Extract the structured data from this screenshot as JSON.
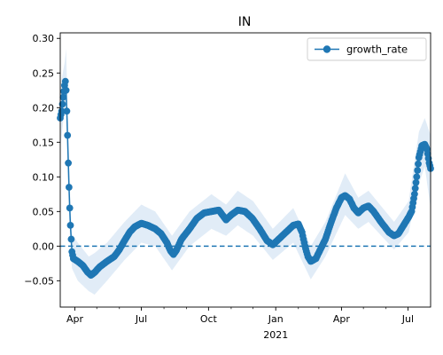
{
  "chart_data": {
    "type": "line",
    "title": "IN",
    "xlabel": "",
    "ylabel": "",
    "x_range": [
      "2020-03-12",
      "2021-08-01"
    ],
    "ylim": [
      -0.088,
      0.308
    ],
    "y_ticks": [
      -0.05,
      0.0,
      0.05,
      0.1,
      0.15,
      0.2,
      0.25,
      0.3
    ],
    "y_tick_labels": [
      "−0.05",
      "0.00",
      "0.05",
      "0.10",
      "0.15",
      "0.20",
      "0.25",
      "0.30"
    ],
    "x_ticks": [
      {
        "date": "2020-04-01",
        "label": "Apr"
      },
      {
        "date": "2020-07-01",
        "label": "Jul"
      },
      {
        "date": "2020-10-01",
        "label": "Oct"
      },
      {
        "date": "2021-01-01",
        "label": "Jan",
        "sublabel": "2021"
      },
      {
        "date": "2021-04-01",
        "label": "Apr"
      },
      {
        "date": "2021-07-01",
        "label": "Jul"
      }
    ],
    "x_minor_ticks": [
      "2020-05-01",
      "2020-06-01",
      "2020-08-01",
      "2020-09-01",
      "2020-11-01",
      "2020-12-01",
      "2021-02-01",
      "2021-03-01",
      "2021-05-01",
      "2021-06-01"
    ],
    "grid": false,
    "legend": {
      "placement": "top-right",
      "entries": [
        "growth_rate"
      ]
    },
    "reference_line": {
      "y": 0,
      "style": "dashed"
    },
    "series": [
      {
        "name": "growth_rate",
        "color": "#1f77b4",
        "band_color": "#dce9f6",
        "marker": "circle",
        "points": [
          [
            "2020-03-12",
            0.185
          ],
          [
            "2020-03-14",
            0.195
          ],
          [
            "2020-03-16",
            0.215
          ],
          [
            "2020-03-18",
            0.232
          ],
          [
            "2020-03-19",
            0.238
          ],
          [
            "2020-03-20",
            0.225
          ],
          [
            "2020-03-21",
            0.195
          ],
          [
            "2020-03-22",
            0.16
          ],
          [
            "2020-03-23",
            0.12
          ],
          [
            "2020-03-24",
            0.085
          ],
          [
            "2020-03-25",
            0.055
          ],
          [
            "2020-03-26",
            0.03
          ],
          [
            "2020-03-27",
            0.01
          ],
          [
            "2020-03-28",
            -0.008
          ],
          [
            "2020-03-30",
            -0.018
          ],
          [
            "2020-04-05",
            -0.022
          ],
          [
            "2020-04-12",
            -0.028
          ],
          [
            "2020-04-18",
            -0.037
          ],
          [
            "2020-04-23",
            -0.042
          ],
          [
            "2020-04-28",
            -0.038
          ],
          [
            "2020-05-05",
            -0.03
          ],
          [
            "2020-05-15",
            -0.022
          ],
          [
            "2020-05-25",
            -0.015
          ],
          [
            "2020-06-01",
            -0.005
          ],
          [
            "2020-06-08",
            0.008
          ],
          [
            "2020-06-15",
            0.02
          ],
          [
            "2020-06-22",
            0.028
          ],
          [
            "2020-07-01",
            0.033
          ],
          [
            "2020-07-10",
            0.03
          ],
          [
            "2020-07-20",
            0.025
          ],
          [
            "2020-07-28",
            0.018
          ],
          [
            "2020-08-05",
            0.005
          ],
          [
            "2020-08-10",
            -0.007
          ],
          [
            "2020-08-14",
            -0.012
          ],
          [
            "2020-08-18",
            -0.006
          ],
          [
            "2020-08-25",
            0.01
          ],
          [
            "2020-09-05",
            0.025
          ],
          [
            "2020-09-15",
            0.04
          ],
          [
            "2020-09-25",
            0.048
          ],
          [
            "2020-10-05",
            0.05
          ],
          [
            "2020-10-15",
            0.052
          ],
          [
            "2020-10-20",
            0.045
          ],
          [
            "2020-10-25",
            0.038
          ],
          [
            "2020-11-01",
            0.045
          ],
          [
            "2020-11-10",
            0.052
          ],
          [
            "2020-11-20",
            0.05
          ],
          [
            "2020-11-30",
            0.04
          ],
          [
            "2020-12-10",
            0.025
          ],
          [
            "2020-12-20",
            0.008
          ],
          [
            "2020-12-28",
            0.002
          ],
          [
            "2021-01-05",
            0.01
          ],
          [
            "2021-01-15",
            0.02
          ],
          [
            "2021-01-25",
            0.03
          ],
          [
            "2021-02-01",
            0.032
          ],
          [
            "2021-02-06",
            0.02
          ],
          [
            "2021-02-10",
            0.0
          ],
          [
            "2021-02-14",
            -0.015
          ],
          [
            "2021-02-18",
            -0.022
          ],
          [
            "2021-02-25",
            -0.018
          ],
          [
            "2021-03-03",
            -0.005
          ],
          [
            "2021-03-10",
            0.01
          ],
          [
            "2021-03-18",
            0.035
          ],
          [
            "2021-03-25",
            0.055
          ],
          [
            "2021-04-01",
            0.07
          ],
          [
            "2021-04-06",
            0.073
          ],
          [
            "2021-04-12",
            0.068
          ],
          [
            "2021-04-18",
            0.055
          ],
          [
            "2021-04-24",
            0.048
          ],
          [
            "2021-05-01",
            0.055
          ],
          [
            "2021-05-08",
            0.058
          ],
          [
            "2021-05-15",
            0.05
          ],
          [
            "2021-05-25",
            0.035
          ],
          [
            "2021-06-05",
            0.02
          ],
          [
            "2021-06-12",
            0.015
          ],
          [
            "2021-06-18",
            0.018
          ],
          [
            "2021-06-25",
            0.03
          ],
          [
            "2021-07-02",
            0.042
          ],
          [
            "2021-07-06",
            0.05
          ],
          [
            "2021-07-10",
            0.075
          ],
          [
            "2021-07-13",
            0.1
          ],
          [
            "2021-07-16",
            0.128
          ],
          [
            "2021-07-20",
            0.145
          ],
          [
            "2021-07-24",
            0.147
          ],
          [
            "2021-07-27",
            0.14
          ],
          [
            "2021-07-30",
            0.12
          ],
          [
            "2021-08-01",
            0.112
          ]
        ],
        "band": [
          [
            "2020-03-12",
            0.14,
            0.23
          ],
          [
            "2020-03-18",
            0.2,
            0.265
          ],
          [
            "2020-03-20",
            0.205,
            0.285
          ],
          [
            "2020-03-22",
            0.12,
            0.205
          ],
          [
            "2020-03-24",
            0.045,
            0.125
          ],
          [
            "2020-03-26",
            0.0,
            0.06
          ],
          [
            "2020-03-28",
            -0.032,
            0.018
          ],
          [
            "2020-04-05",
            -0.05,
            0.005
          ],
          [
            "2020-04-20",
            -0.065,
            -0.015
          ],
          [
            "2020-04-28",
            -0.07,
            -0.01
          ],
          [
            "2020-05-15",
            -0.05,
            0.005
          ],
          [
            "2020-06-08",
            -0.02,
            0.035
          ],
          [
            "2020-07-01",
            0.005,
            0.06
          ],
          [
            "2020-07-20",
            0.0,
            0.05
          ],
          [
            "2020-08-12",
            -0.035,
            0.015
          ],
          [
            "2020-09-05",
            0.0,
            0.05
          ],
          [
            "2020-10-05",
            0.025,
            0.075
          ],
          [
            "2020-10-25",
            0.015,
            0.06
          ],
          [
            "2020-11-10",
            0.03,
            0.08
          ],
          [
            "2020-12-01",
            0.015,
            0.065
          ],
          [
            "2020-12-28",
            -0.02,
            0.025
          ],
          [
            "2021-01-25",
            0.005,
            0.055
          ],
          [
            "2021-02-18",
            -0.048,
            0.0
          ],
          [
            "2021-03-10",
            -0.015,
            0.035
          ],
          [
            "2021-04-06",
            0.045,
            0.105
          ],
          [
            "2021-04-24",
            0.025,
            0.07
          ],
          [
            "2021-05-08",
            0.035,
            0.08
          ],
          [
            "2021-06-12",
            -0.005,
            0.035
          ],
          [
            "2021-07-02",
            0.02,
            0.065
          ],
          [
            "2021-07-16",
            0.09,
            0.165
          ],
          [
            "2021-07-24",
            0.115,
            0.185
          ],
          [
            "2021-08-01",
            0.055,
            0.16
          ]
        ]
      }
    ]
  }
}
